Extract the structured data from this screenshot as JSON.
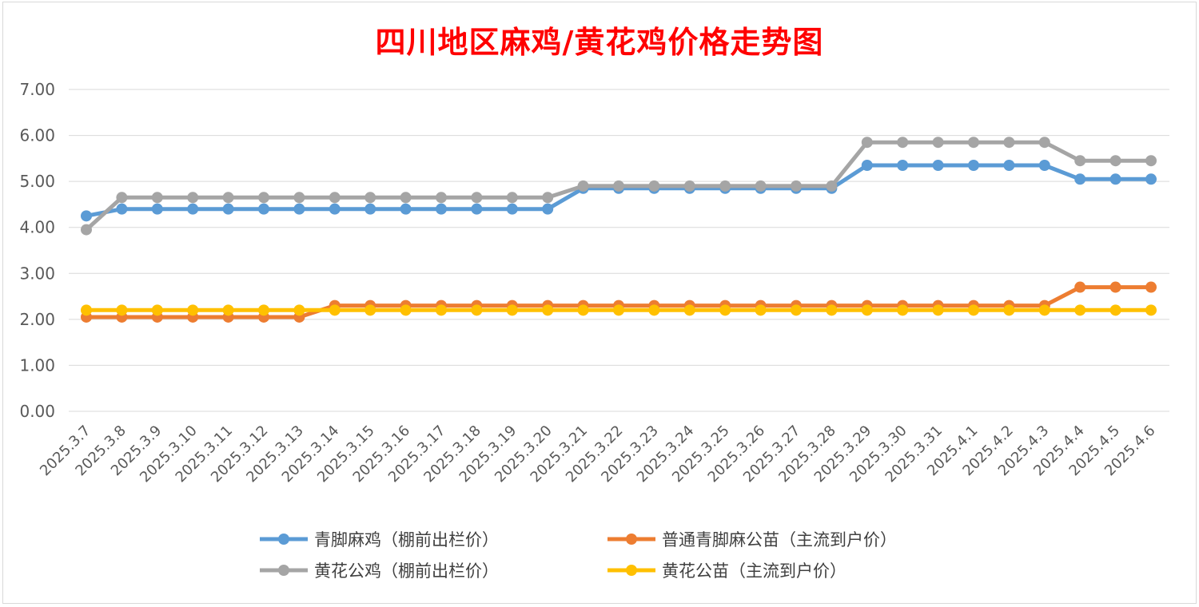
{
  "chart_data": {
    "type": "line",
    "title": "四川地区麻鸡/黄花鸡价格走势图",
    "xlabel": "",
    "ylabel": "",
    "ylim": [
      0,
      7
    ],
    "yticks": [
      "0.00",
      "1.00",
      "2.00",
      "3.00",
      "4.00",
      "5.00",
      "6.00",
      "7.00"
    ],
    "grid": true,
    "legend_position": "bottom",
    "categories": [
      "2025.3.7",
      "2025.3.8",
      "2025.3.9",
      "2025.3.10",
      "2025.3.11",
      "2025.3.12",
      "2025.3.13",
      "2025.3.14",
      "2025.3.15",
      "2025.3.16",
      "2025.3.17",
      "2025.3.18",
      "2025.3.19",
      "2025.3.20",
      "2025.3.21",
      "2025.3.22",
      "2025.3.23",
      "2025.3.24",
      "2025.3.25",
      "2025.3.26",
      "2025.3.27",
      "2025.3.28",
      "2025.3.29",
      "2025.3.30",
      "2025.3.31",
      "2025.4.1",
      "2025.4.2",
      "2025.4.3",
      "2025.4.4",
      "2025.4.5",
      "2025.4.6"
    ],
    "series": [
      {
        "name": "青脚麻鸡（棚前出栏价）",
        "color": "#5b9bd5",
        "values": [
          4.25,
          4.4,
          4.4,
          4.4,
          4.4,
          4.4,
          4.4,
          4.4,
          4.4,
          4.4,
          4.4,
          4.4,
          4.4,
          4.4,
          4.85,
          4.85,
          4.85,
          4.85,
          4.85,
          4.85,
          4.85,
          4.85,
          5.35,
          5.35,
          5.35,
          5.35,
          5.35,
          5.35,
          5.05,
          5.05,
          5.05
        ]
      },
      {
        "name": "普通青脚麻公苗（主流到户价）",
        "color": "#ed7d31",
        "values": [
          2.05,
          2.05,
          2.05,
          2.05,
          2.05,
          2.05,
          2.05,
          2.3,
          2.3,
          2.3,
          2.3,
          2.3,
          2.3,
          2.3,
          2.3,
          2.3,
          2.3,
          2.3,
          2.3,
          2.3,
          2.3,
          2.3,
          2.3,
          2.3,
          2.3,
          2.3,
          2.3,
          2.3,
          2.7,
          2.7,
          2.7
        ]
      },
      {
        "name": "黄花公鸡（棚前出栏价）",
        "color": "#a5a5a5",
        "values": [
          3.95,
          4.65,
          4.65,
          4.65,
          4.65,
          4.65,
          4.65,
          4.65,
          4.65,
          4.65,
          4.65,
          4.65,
          4.65,
          4.65,
          4.9,
          4.9,
          4.9,
          4.9,
          4.9,
          4.9,
          4.9,
          4.9,
          5.85,
          5.85,
          5.85,
          5.85,
          5.85,
          5.85,
          5.45,
          5.45,
          5.45
        ]
      },
      {
        "name": "黄花公苗（主流到户价）",
        "color": "#ffc000",
        "values": [
          2.2,
          2.2,
          2.2,
          2.2,
          2.2,
          2.2,
          2.2,
          2.2,
          2.2,
          2.2,
          2.2,
          2.2,
          2.2,
          2.2,
          2.2,
          2.2,
          2.2,
          2.2,
          2.2,
          2.2,
          2.2,
          2.2,
          2.2,
          2.2,
          2.2,
          2.2,
          2.2,
          2.2,
          2.2,
          2.2,
          2.2
        ]
      }
    ],
    "draw_order": [
      0,
      2,
      1,
      3
    ]
  }
}
